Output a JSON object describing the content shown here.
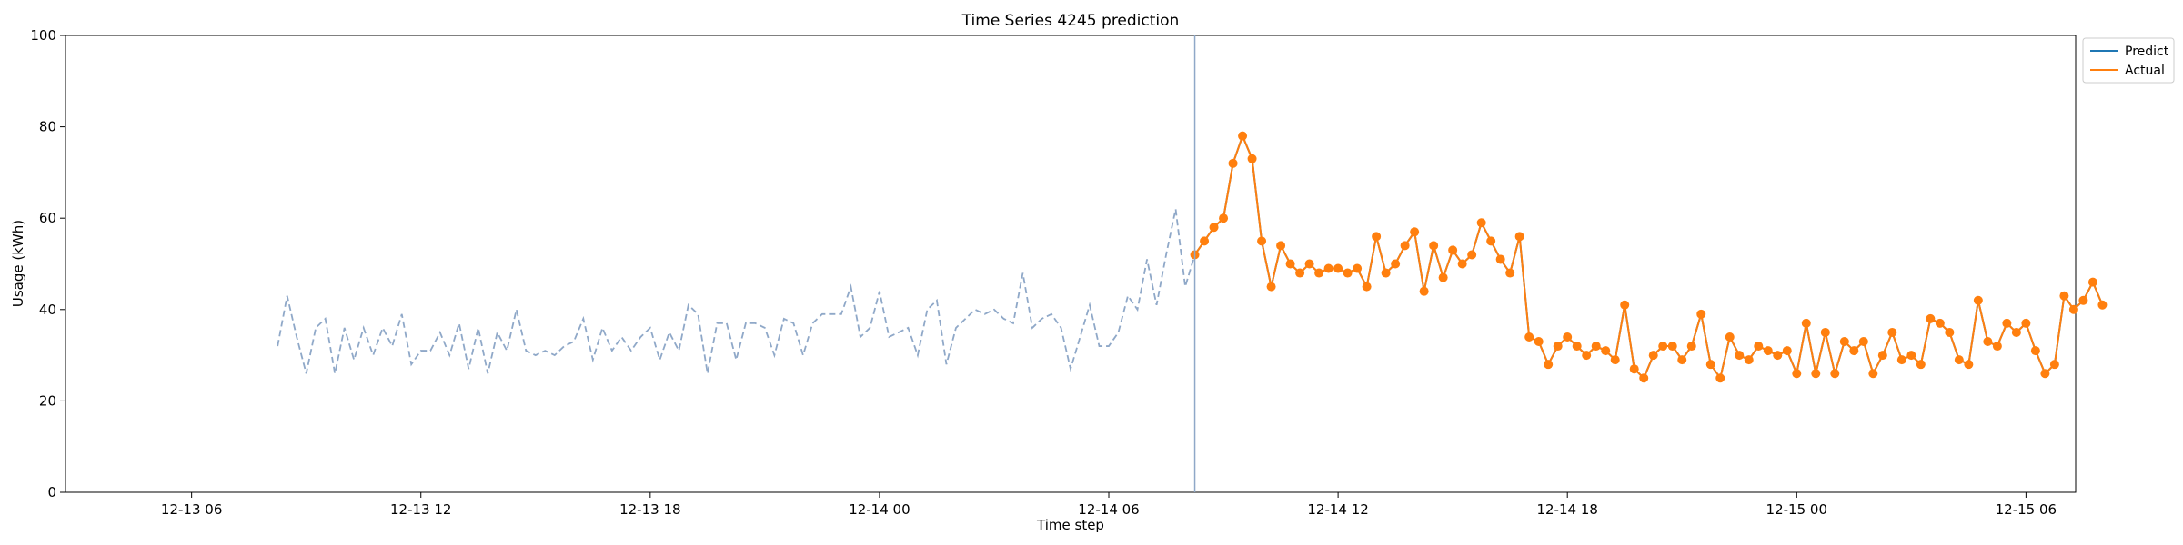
{
  "chart_data": {
    "type": "line",
    "title": "Time Series 4245 prediction",
    "xlabel": "Time step",
    "ylabel": "Usage (kWh)",
    "ylim": [
      0,
      100
    ],
    "xlim_hours": [
      -3.3,
      49.3
    ],
    "x_unit": "hours after 12-13 06:00",
    "y_ticks": [
      0,
      20,
      40,
      60,
      80,
      100
    ],
    "x_ticks": [
      {
        "hour": 0,
        "label": "12-13 06"
      },
      {
        "hour": 6,
        "label": "12-13 12"
      },
      {
        "hour": 12,
        "label": "12-13 18"
      },
      {
        "hour": 18,
        "label": "12-14 00"
      },
      {
        "hour": 24,
        "label": "12-14 06"
      },
      {
        "hour": 30,
        "label": "12-14 12"
      },
      {
        "hour": 36,
        "label": "12-14 18"
      },
      {
        "hour": 42,
        "label": "12-15 00"
      },
      {
        "hour": 48,
        "label": "12-15 06"
      }
    ],
    "forecast_start_hour": 26.25,
    "legend": {
      "placement": "outside-top-right",
      "entries": [
        {
          "label": "Predict",
          "color": "#1f77b4"
        },
        {
          "label": "Actual",
          "color": "#ff7f0e"
        }
      ]
    },
    "history": {
      "name": "History",
      "color": "#8fa8c8",
      "start_hour": 2.25,
      "step_hours": 0.25,
      "values": [
        32,
        43,
        34,
        26,
        36,
        38,
        26,
        36,
        29,
        36,
        30,
        36,
        32,
        39,
        28,
        31,
        31,
        35,
        30,
        37,
        27,
        36,
        26,
        35,
        31,
        40,
        31,
        30,
        31,
        30,
        32,
        33,
        38,
        29,
        36,
        31,
        34,
        31,
        34,
        36,
        29,
        35,
        31,
        41,
        39,
        26,
        37,
        37,
        29,
        37,
        37,
        36,
        30,
        38,
        37,
        30,
        37,
        39,
        39,
        39,
        45,
        34,
        36,
        44,
        34,
        35,
        36,
        30,
        40,
        42,
        28,
        36,
        38,
        40,
        39,
        40,
        38,
        37,
        48,
        36,
        38,
        39,
        36,
        27,
        34,
        41,
        32,
        32,
        35,
        43,
        40,
        51,
        41,
        52,
        62,
        45,
        52
      ]
    },
    "actual": {
      "name": "Actual",
      "color": "#ff7f0e",
      "start_hour": 26.25,
      "step_hours": 0.25,
      "values": [
        52,
        55,
        58,
        60,
        72,
        78,
        73,
        55,
        45,
        54,
        50,
        48,
        50,
        48,
        49,
        49,
        48,
        49,
        45,
        56,
        48,
        50,
        54,
        57,
        44,
        54,
        47,
        53,
        50,
        52,
        59,
        55,
        51,
        48,
        56,
        34,
        33,
        28,
        32,
        34,
        32,
        30,
        32,
        31,
        29,
        41,
        27,
        25,
        30,
        32,
        32,
        29,
        32,
        39,
        28,
        25,
        34,
        30,
        29,
        32,
        31,
        30,
        31,
        26,
        37,
        26,
        35,
        26,
        33,
        31,
        33,
        26,
        30,
        35,
        29,
        30,
        28,
        38,
        37,
        35,
        29,
        28,
        42,
        33,
        32,
        37,
        35,
        37,
        31,
        26,
        28,
        43,
        40,
        42,
        46,
        41
      ]
    },
    "predict": {
      "name": "Predict",
      "color": "#1f77b4",
      "start_hour": 26.25,
      "step_hours": 0.25,
      "values": [
        52,
        55,
        58,
        60,
        72,
        78,
        73,
        55,
        45,
        54,
        50,
        48,
        50,
        48,
        49,
        49,
        48,
        49,
        45,
        56,
        48,
        50,
        54,
        57,
        44,
        54,
        47,
        53,
        50,
        52,
        59,
        55,
        51,
        48,
        56,
        34,
        33,
        28,
        32,
        34,
        32,
        30,
        32,
        31,
        29,
        41,
        27,
        25,
        30,
        32,
        32,
        29,
        32,
        39,
        28,
        25,
        34,
        30,
        29,
        32,
        31,
        30,
        31,
        26,
        37,
        26,
        35,
        26,
        33,
        31,
        33,
        26,
        30,
        35,
        29,
        30,
        28,
        38,
        37,
        35,
        29,
        28,
        42,
        33,
        32,
        37,
        35,
        37,
        31,
        26,
        28,
        43,
        40,
        42,
        46,
        41
      ]
    }
  }
}
